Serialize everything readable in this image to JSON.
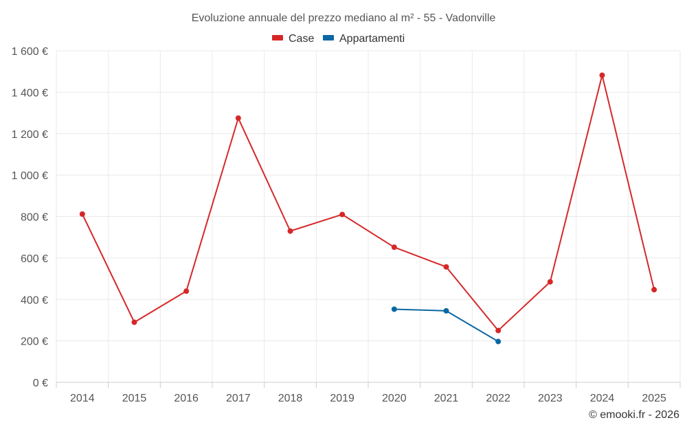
{
  "chart_data": {
    "type": "line",
    "title": "Evoluzione annuale del prezzo mediano al m² - 55 - Vadonville",
    "xlabel": "",
    "ylabel": "",
    "categories": [
      "2014",
      "2015",
      "2016",
      "2017",
      "2018",
      "2019",
      "2020",
      "2021",
      "2022",
      "2023",
      "2024",
      "2025"
    ],
    "y_ticks": [
      0,
      200,
      400,
      600,
      800,
      1000,
      1200,
      1400,
      1600
    ],
    "y_tick_labels": [
      "0 €",
      "200 €",
      "400 €",
      "600 €",
      "800 €",
      "1 000 €",
      "1 200 €",
      "1 400 €",
      "1 600 €"
    ],
    "ylim": [
      0,
      1600
    ],
    "grid": true,
    "legend_position": "top-center",
    "series": [
      {
        "name": "Case",
        "color": "#d62728",
        "values": [
          812,
          290,
          440,
          1275,
          730,
          810,
          652,
          557,
          250,
          485,
          1482,
          447
        ]
      },
      {
        "name": "Appartamenti",
        "color": "#0b67a3",
        "values": [
          null,
          null,
          null,
          null,
          null,
          null,
          353,
          345,
          197,
          null,
          null,
          null
        ]
      }
    ]
  },
  "credit": "© emooki.fr - 2026"
}
